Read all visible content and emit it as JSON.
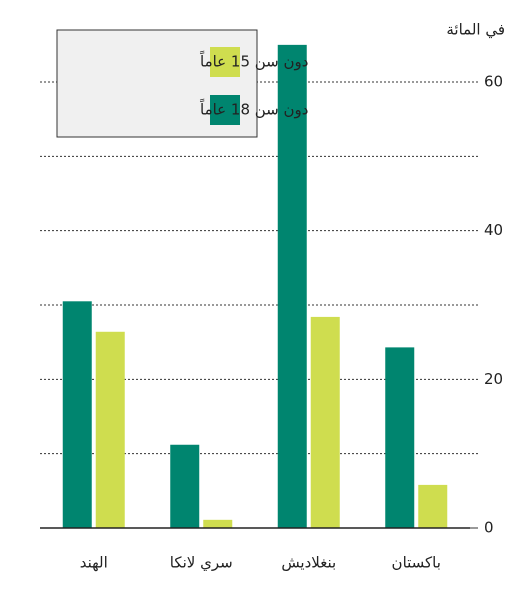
{
  "chart_data": {
    "type": "bar",
    "y_axis_label": "في المائة",
    "categories": [
      "الهند",
      "سري لانكا",
      "بنغلاديش",
      "باكستان"
    ],
    "series": [
      {
        "name": "دون سن 18 عاماً",
        "color": "#00856f",
        "values": [
          30.5,
          11.2,
          65,
          24.3
        ]
      },
      {
        "name": "دون سن 15 عاماً",
        "color": "#cfdd4f",
        "values": [
          26.4,
          1.1,
          28.4,
          5.8
        ]
      }
    ],
    "ylim": [
      0,
      67
    ],
    "yticks": [
      0,
      20,
      40,
      60
    ],
    "minor_yticks": [
      10,
      30,
      50
    ],
    "grid": true
  }
}
